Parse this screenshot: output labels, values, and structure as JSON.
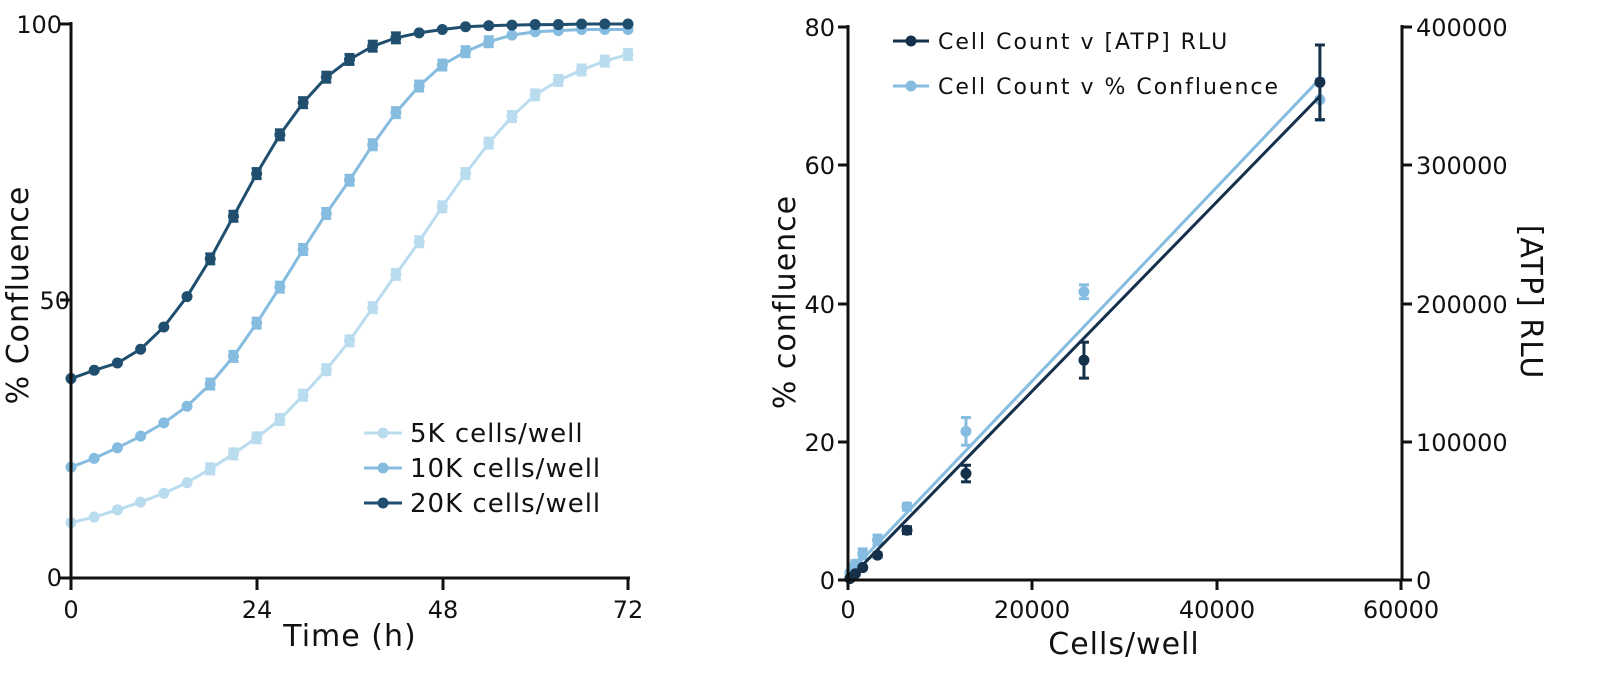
{
  "chart_data": [
    {
      "type": "line",
      "xlabel": "Time (h)",
      "ylabel": "% Confluence",
      "xlim": [
        0,
        72
      ],
      "ylim": [
        0,
        100
      ],
      "xticks": [
        "0",
        "24",
        "48",
        "72"
      ],
      "yticks": [
        "0",
        "50",
        "100"
      ],
      "legend_position": "bottom-right",
      "grid": false,
      "series": [
        {
          "name": "5K cells/well",
          "color": "#b9dcef",
          "x": [
            0,
            3,
            6,
            9,
            12,
            15,
            18,
            21,
            24,
            27,
            30,
            33,
            36,
            39,
            42,
            45,
            48,
            51,
            54,
            57,
            60,
            63,
            66,
            69,
            72
          ],
          "y": [
            10,
            11,
            12.3,
            13.7,
            15.3,
            17.2,
            19.7,
            22.4,
            25.3,
            28.6,
            33,
            37.6,
            42.8,
            48.8,
            54.8,
            60.7,
            67,
            73,
            78.5,
            83.3,
            87.2,
            89.8,
            91.7,
            93.3,
            94.5
          ]
        },
        {
          "name": "10K cells/well",
          "color": "#86bcdf",
          "x": [
            0,
            3,
            6,
            9,
            12,
            15,
            18,
            21,
            24,
            27,
            30,
            33,
            36,
            39,
            42,
            45,
            48,
            51,
            54,
            57,
            60,
            63,
            66,
            69,
            72
          ],
          "y": [
            20,
            21.6,
            23.5,
            25.6,
            28,
            31,
            35,
            40,
            46,
            52.5,
            59.3,
            65.8,
            71.8,
            78.2,
            84,
            88.8,
            92.6,
            95,
            96.8,
            98,
            98.6,
            98.8,
            99,
            99,
            99
          ]
        },
        {
          "name": "20K cells/well",
          "color": "#1f4e6e",
          "x": [
            0,
            3,
            6,
            9,
            12,
            15,
            18,
            21,
            24,
            27,
            30,
            33,
            36,
            39,
            42,
            45,
            48,
            51,
            54,
            57,
            60,
            63,
            66,
            69,
            72
          ],
          "y": [
            36,
            37.5,
            38.8,
            41.3,
            45.3,
            50.8,
            57.6,
            65.3,
            73,
            80,
            85.8,
            90.4,
            93.6,
            96,
            97.5,
            98.4,
            99,
            99.5,
            99.7,
            99.8,
            99.9,
            99.9,
            100,
            100,
            100
          ]
        }
      ]
    },
    {
      "type": "scatter",
      "xlabel": "Cells/well",
      "ylabel": "% confluence",
      "y2label": "[ATP] RLU",
      "xlim": [
        0,
        60000
      ],
      "ylim": [
        0,
        80
      ],
      "y2lim": [
        0,
        400000
      ],
      "xticks": [
        "0",
        "20000",
        "40000",
        "60000"
      ],
      "yticks": [
        "0",
        "20",
        "40",
        "60",
        "80"
      ],
      "y2ticks": [
        "0",
        "100000",
        "200000",
        "300000",
        "400000"
      ],
      "legend_position": "top-left",
      "grid": false,
      "series": [
        {
          "name": "Cell Count v [ATP] RLU",
          "color": "#14304a",
          "axis": "right",
          "x": [
            200,
            400,
            800,
            1600,
            3200,
            6400,
            12800,
            25600,
            51200
          ],
          "y": [
            1000,
            2000,
            4500,
            9000,
            18000,
            36000,
            77000,
            159000,
            360000
          ],
          "y_err": [
            500,
            500,
            800,
            1000,
            1500,
            2500,
            6000,
            13000,
            27000
          ],
          "fit": {
            "x": [
              0,
              51200
            ],
            "y": [
              0,
              350000
            ]
          }
        },
        {
          "name": "Cell Count v % Confluence",
          "color": "#86bcdf",
          "axis": "left",
          "x": [
            200,
            400,
            800,
            1600,
            3200,
            6400,
            12800,
            25600,
            51200
          ],
          "y": [
            1,
            1.6,
            2.3,
            3.8,
            5.8,
            10.6,
            21.5,
            41.7,
            69.5
          ],
          "y_err": [
            0.3,
            0.4,
            0.5,
            0.7,
            0.7,
            0.5,
            2,
            1,
            3
          ],
          "fit": {
            "x": [
              0,
              51200
            ],
            "y": [
              0.8,
              72.5
            ]
          }
        }
      ]
    }
  ]
}
